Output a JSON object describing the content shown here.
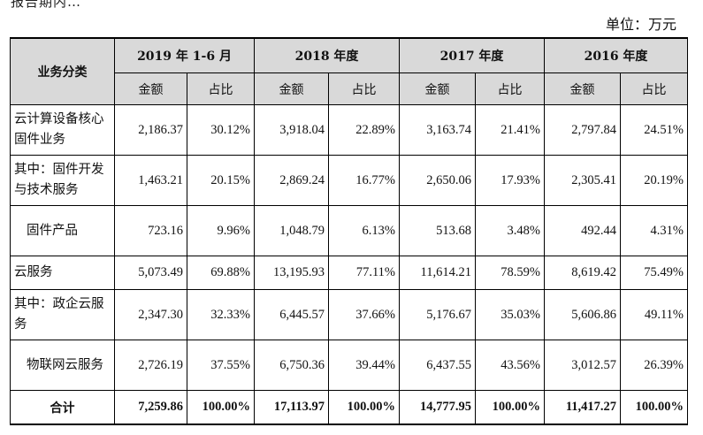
{
  "top_text": "报告期内…",
  "unit": "单位：万元",
  "headers": {
    "category": "业务分类",
    "periods": [
      "2019 年 1-6 月",
      "2018 年度",
      "2017 年度",
      "2016 年度"
    ],
    "amount": "金额",
    "ratio": "占比"
  },
  "rows": [
    {
      "name": "云计算设备核心固件业务",
      "values": [
        "2,186.37",
        "30.12%",
        "3,918.04",
        "22.89%",
        "3,163.74",
        "21.41%",
        "2,797.84",
        "24.51%"
      ]
    },
    {
      "name": "其中：固件开发与技术服务",
      "values": [
        "1,463.21",
        "20.15%",
        "2,869.24",
        "16.77%",
        "2,650.06",
        "17.93%",
        "2,305.41",
        "20.19%"
      ]
    },
    {
      "name": "固件产品",
      "values": [
        "723.16",
        "9.96%",
        "1,048.79",
        "6.13%",
        "513.68",
        "3.48%",
        "492.44",
        "4.31%"
      ]
    },
    {
      "name": "云服务",
      "values": [
        "5,073.49",
        "69.88%",
        "13,195.93",
        "77.11%",
        "11,614.21",
        "78.59%",
        "8,619.42",
        "75.49%"
      ]
    },
    {
      "name": "其中：政企云服务",
      "values": [
        "2,347.30",
        "32.33%",
        "6,445.57",
        "37.66%",
        "5,176.67",
        "35.03%",
        "5,606.86",
        "49.11%"
      ]
    },
    {
      "name": "物联网云服务",
      "values": [
        "2,726.19",
        "37.55%",
        "6,750.36",
        "39.44%",
        "6,437.55",
        "43.56%",
        "3,012.57",
        "26.39%"
      ]
    }
  ],
  "total": {
    "name": "合计",
    "values": [
      "7,259.86",
      "100.00%",
      "17,113.97",
      "100.00%",
      "14,777.95",
      "100.00%",
      "11,417.27",
      "100.00%"
    ]
  }
}
